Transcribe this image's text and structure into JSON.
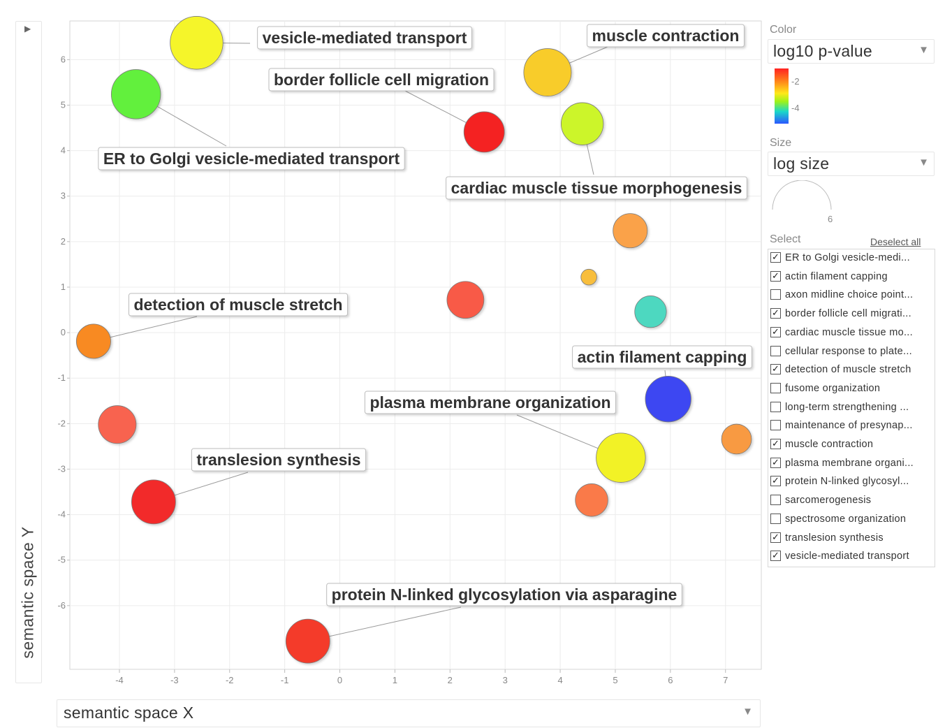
{
  "chart_data": {
    "type": "scatter",
    "xlabel": "semantic space X",
    "ylabel": "semantic space Y",
    "xlim": [
      -4.9,
      7.65
    ],
    "ylim": [
      -7.4,
      6.85
    ],
    "xticks": [
      -4,
      -3,
      -2,
      -1,
      0,
      1,
      2,
      3,
      4,
      5,
      6,
      7
    ],
    "yticks": [
      -6,
      -5,
      -4,
      -3,
      -2,
      -1,
      0,
      1,
      2,
      3,
      4,
      5,
      6
    ],
    "grid": true,
    "points": [
      {
        "x": -2.6,
        "y": 6.37,
        "size": 6.0,
        "color": "#f5f52a",
        "label": "vesicle-mediated transport"
      },
      {
        "x": 3.77,
        "y": 5.72,
        "size": 5.4,
        "color": "#f8cc2c",
        "label": "muscle contraction"
      },
      {
        "x": -3.7,
        "y": 5.24,
        "size": 5.6,
        "color": "#62f03c",
        "label": "ER to Golgi vesicle-mediated transport"
      },
      {
        "x": 2.62,
        "y": 4.41,
        "size": 4.6,
        "color": "#f42222",
        "label": "border follicle cell migration"
      },
      {
        "x": 4.4,
        "y": 4.59,
        "size": 4.8,
        "color": "#ccf52c",
        "label": "cardiac muscle tissue morphogenesis"
      },
      {
        "x": 5.27,
        "y": 2.24,
        "size": 3.9,
        "color": "#faa24a",
        "label": ""
      },
      {
        "x": 4.52,
        "y": 1.22,
        "size": 1.8,
        "color": "#f8be3e",
        "label": ""
      },
      {
        "x": 2.28,
        "y": 0.72,
        "size": 4.2,
        "color": "#f85a46",
        "label": ""
      },
      {
        "x": 5.64,
        "y": 0.46,
        "size": 3.6,
        "color": "#4ed8c0",
        "label": ""
      },
      {
        "x": -4.47,
        "y": -0.19,
        "size": 3.9,
        "color": "#f88a24",
        "label": "detection of muscle stretch"
      },
      {
        "x": 5.96,
        "y": -1.46,
        "size": 5.2,
        "color": "#3c46f2",
        "label": "actin filament capping"
      },
      {
        "x": -4.04,
        "y": -2.02,
        "size": 4.3,
        "color": "#f86450",
        "label": ""
      },
      {
        "x": 7.2,
        "y": -2.34,
        "size": 3.4,
        "color": "#f89a42",
        "label": ""
      },
      {
        "x": 5.1,
        "y": -2.75,
        "size": 5.6,
        "color": "#f2f228",
        "label": "plasma membrane organization"
      },
      {
        "x": -3.38,
        "y": -3.72,
        "size": 5.0,
        "color": "#f22c2c",
        "label": "translesion synthesis"
      },
      {
        "x": 4.57,
        "y": -3.68,
        "size": 3.7,
        "color": "#fa7a48",
        "label": ""
      },
      {
        "x": -0.58,
        "y": -6.78,
        "size": 5.0,
        "color": "#f43a2a",
        "label": "protein N-linked glycosylation via asparagine"
      }
    ]
  },
  "controls": {
    "x_axis_selector": "semantic space X",
    "color_title": "Color",
    "color_value": "log10 p-value",
    "colorbar_ticks": [
      "-2",
      "-4"
    ],
    "size_title": "Size",
    "size_value": "log size",
    "size_legend_value": "6",
    "select_title": "Select",
    "deselect_all": "Deselect all",
    "select_items": [
      {
        "label": "ER to Golgi vesicle-medi...",
        "checked": true
      },
      {
        "label": "actin filament capping",
        "checked": true
      },
      {
        "label": "axon midline choice point...",
        "checked": false
      },
      {
        "label": "border follicle cell migrati...",
        "checked": true
      },
      {
        "label": "cardiac muscle tissue mo...",
        "checked": true
      },
      {
        "label": "cellular response to plate...",
        "checked": false
      },
      {
        "label": "detection of muscle stretch",
        "checked": true
      },
      {
        "label": "fusome organization",
        "checked": false
      },
      {
        "label": "long-term strengthening ...",
        "checked": false
      },
      {
        "label": "maintenance of presynap...",
        "checked": false
      },
      {
        "label": "muscle contraction",
        "checked": true
      },
      {
        "label": "plasma membrane organi...",
        "checked": true
      },
      {
        "label": "protein N-linked glycosyl...",
        "checked": true
      },
      {
        "label": "sarcomerogenesis",
        "checked": false
      },
      {
        "label": "spectrosome organization",
        "checked": false
      },
      {
        "label": "translesion synthesis",
        "checked": true
      },
      {
        "label": "vesicle-mediated transport",
        "checked": true
      }
    ]
  }
}
